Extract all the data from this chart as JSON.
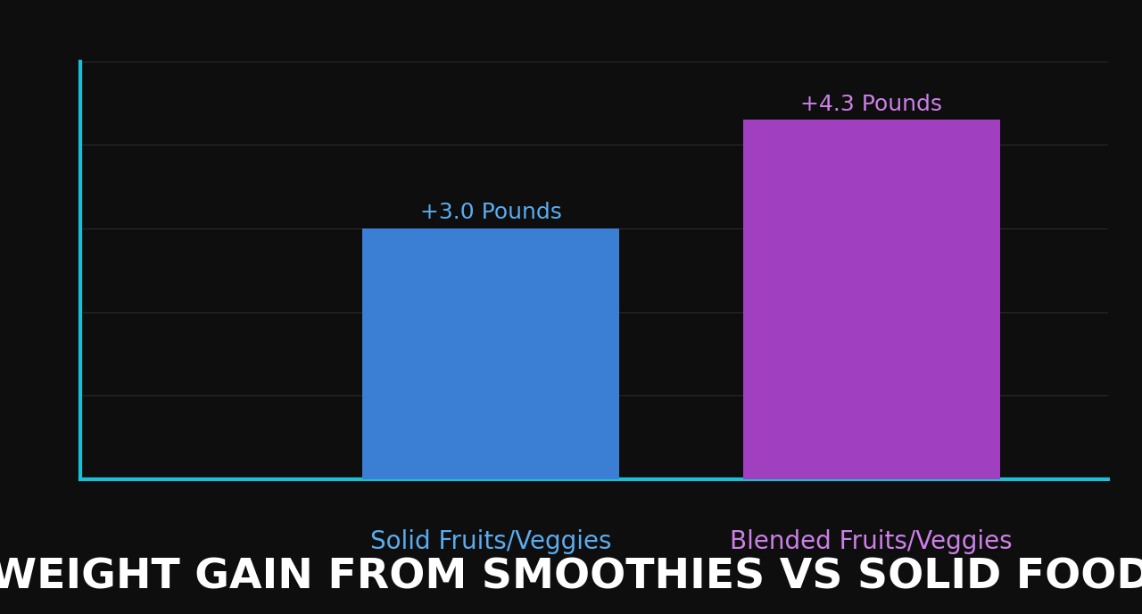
{
  "categories": [
    "Solid Fruits/Veggies",
    "Blended Fruits/Veggies"
  ],
  "values": [
    3.0,
    4.3
  ],
  "bar_colors": [
    "#3B7FD4",
    "#A040C0"
  ],
  "label_colors": [
    "#5AACF0",
    "#CC80E8"
  ],
  "value_labels": [
    "+3.0 Pounds",
    "+4.3 Pounds"
  ],
  "title": "WEIGHT GAIN FROM SMOOTHIES VS SOLID FOOD",
  "title_color": "#FFFFFF",
  "title_fontsize": 34,
  "xlabel_color_solid": "#5AACF0",
  "xlabel_color_blended": "#CC80E8",
  "xlabel_fontsize": 20,
  "value_label_fontsize": 18,
  "background_color": "#0E0E0E",
  "axes_color": "#1ABFDA",
  "grid_color": "#2A2A2A",
  "ylim": [
    0,
    5.0
  ],
  "bar_width": 0.25,
  "x_positions": [
    0.45,
    0.82
  ],
  "xlim": [
    0.05,
    1.05
  ]
}
